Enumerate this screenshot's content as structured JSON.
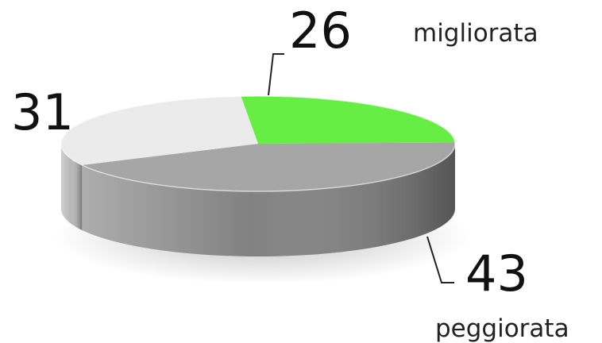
{
  "chart_data": {
    "type": "pie",
    "style": "3d",
    "slices": [
      {
        "value": 26,
        "label": "26",
        "category": "migliorata",
        "color": "#66ee44"
      },
      {
        "value": 43,
        "label": "43",
        "category": "peggiorata",
        "color": "#a6a6a6"
      },
      {
        "value": 31,
        "label": "31",
        "category": "",
        "color": "#ebebeb"
      }
    ]
  }
}
